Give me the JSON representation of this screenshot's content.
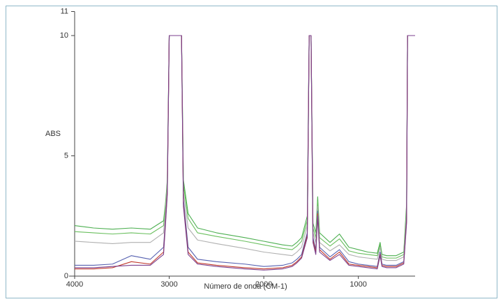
{
  "chart_data": {
    "type": "line",
    "ylabel": "ABS",
    "xlabel": "Número de onda (CM-1)",
    "xlim": [
      4000,
      400
    ],
    "ylim": [
      0,
      11
    ],
    "xticks": [
      4000,
      3000,
      2000,
      1000
    ],
    "yticks": [
      0,
      5,
      10,
      11
    ],
    "x": [
      4000,
      3800,
      3600,
      3400,
      3200,
      3060,
      3040,
      3020,
      3000,
      2950,
      2900,
      2870,
      2850,
      2800,
      2700,
      2500,
      2200,
      2000,
      1800,
      1700,
      1650,
      1600,
      1540,
      1520,
      1500,
      1480,
      1450,
      1430,
      1410,
      1300,
      1200,
      1100,
      1000,
      900,
      800,
      770,
      750,
      700,
      600,
      520,
      490,
      480,
      460,
      440,
      420,
      400
    ],
    "series": [
      {
        "color": "#4caf50",
        "values": [
          2.1,
          2.0,
          1.95,
          2.0,
          1.95,
          2.3,
          3.0,
          4.0,
          10,
          10,
          10,
          10,
          4.0,
          2.6,
          2.0,
          1.8,
          1.6,
          1.45,
          1.3,
          1.25,
          1.4,
          1.6,
          2.5,
          10,
          10,
          2.2,
          1.8,
          3.3,
          1.8,
          1.4,
          1.75,
          1.2,
          1.1,
          1.0,
          0.95,
          1.4,
          0.9,
          0.85,
          0.85,
          1.0,
          3.0,
          10,
          10,
          10,
          10,
          10
        ]
      },
      {
        "color": "#6abf5e",
        "values": [
          1.85,
          1.8,
          1.75,
          1.8,
          1.75,
          2.1,
          2.9,
          3.9,
          10,
          10,
          10,
          10,
          3.8,
          2.4,
          1.8,
          1.65,
          1.45,
          1.3,
          1.15,
          1.1,
          1.25,
          1.45,
          2.3,
          10,
          10,
          2.0,
          1.6,
          3.1,
          1.6,
          1.25,
          1.55,
          1.05,
          0.95,
          0.9,
          0.85,
          1.3,
          0.8,
          0.75,
          0.75,
          0.9,
          2.8,
          10,
          10,
          10,
          10,
          10
        ]
      },
      {
        "color": "#b0b0b0",
        "values": [
          1.45,
          1.4,
          1.35,
          1.4,
          1.4,
          1.8,
          2.7,
          3.8,
          10,
          10,
          10,
          10,
          3.5,
          2.0,
          1.5,
          1.35,
          1.15,
          1.0,
          0.9,
          0.85,
          1.0,
          1.2,
          2.1,
          10,
          10,
          1.8,
          1.4,
          2.9,
          1.4,
          1.05,
          1.3,
          0.9,
          0.8,
          0.75,
          0.7,
          1.2,
          0.7,
          0.65,
          0.65,
          0.8,
          2.6,
          10,
          10,
          10,
          10,
          10
        ]
      },
      {
        "color": "#5560b0",
        "values": [
          0.45,
          0.45,
          0.5,
          0.85,
          0.7,
          1.2,
          2.3,
          3.6,
          10,
          10,
          10,
          10,
          3.2,
          1.2,
          0.7,
          0.6,
          0.5,
          0.4,
          0.45,
          0.55,
          0.7,
          0.9,
          1.8,
          10,
          10,
          1.6,
          1.1,
          2.7,
          1.2,
          0.8,
          1.1,
          0.6,
          0.5,
          0.45,
          0.4,
          1.0,
          0.5,
          0.45,
          0.45,
          0.6,
          2.4,
          10,
          10,
          10,
          10,
          10
        ]
      },
      {
        "color": "#c0392b",
        "values": [
          0.3,
          0.3,
          0.35,
          0.6,
          0.5,
          1.0,
          2.2,
          3.5,
          10,
          10,
          10,
          10,
          3.0,
          1.0,
          0.55,
          0.45,
          0.35,
          0.3,
          0.35,
          0.45,
          0.6,
          0.8,
          1.7,
          10,
          10,
          1.5,
          1.0,
          2.6,
          1.1,
          0.7,
          1.0,
          0.5,
          0.45,
          0.4,
          0.35,
          0.9,
          0.45,
          0.4,
          0.4,
          0.55,
          2.3,
          10,
          10,
          10,
          10,
          10
        ]
      },
      {
        "color": "#7b3f8c",
        "values": [
          0.35,
          0.35,
          0.4,
          0.45,
          0.45,
          0.9,
          2.1,
          3.4,
          10,
          10,
          10,
          10,
          2.9,
          0.9,
          0.5,
          0.4,
          0.3,
          0.25,
          0.3,
          0.4,
          0.55,
          0.75,
          1.6,
          10,
          10,
          1.4,
          0.9,
          2.5,
          1.0,
          0.65,
          0.9,
          0.45,
          0.4,
          0.35,
          0.3,
          0.85,
          0.4,
          0.35,
          0.35,
          0.5,
          2.2,
          10,
          10,
          10,
          10,
          10
        ]
      }
    ]
  }
}
